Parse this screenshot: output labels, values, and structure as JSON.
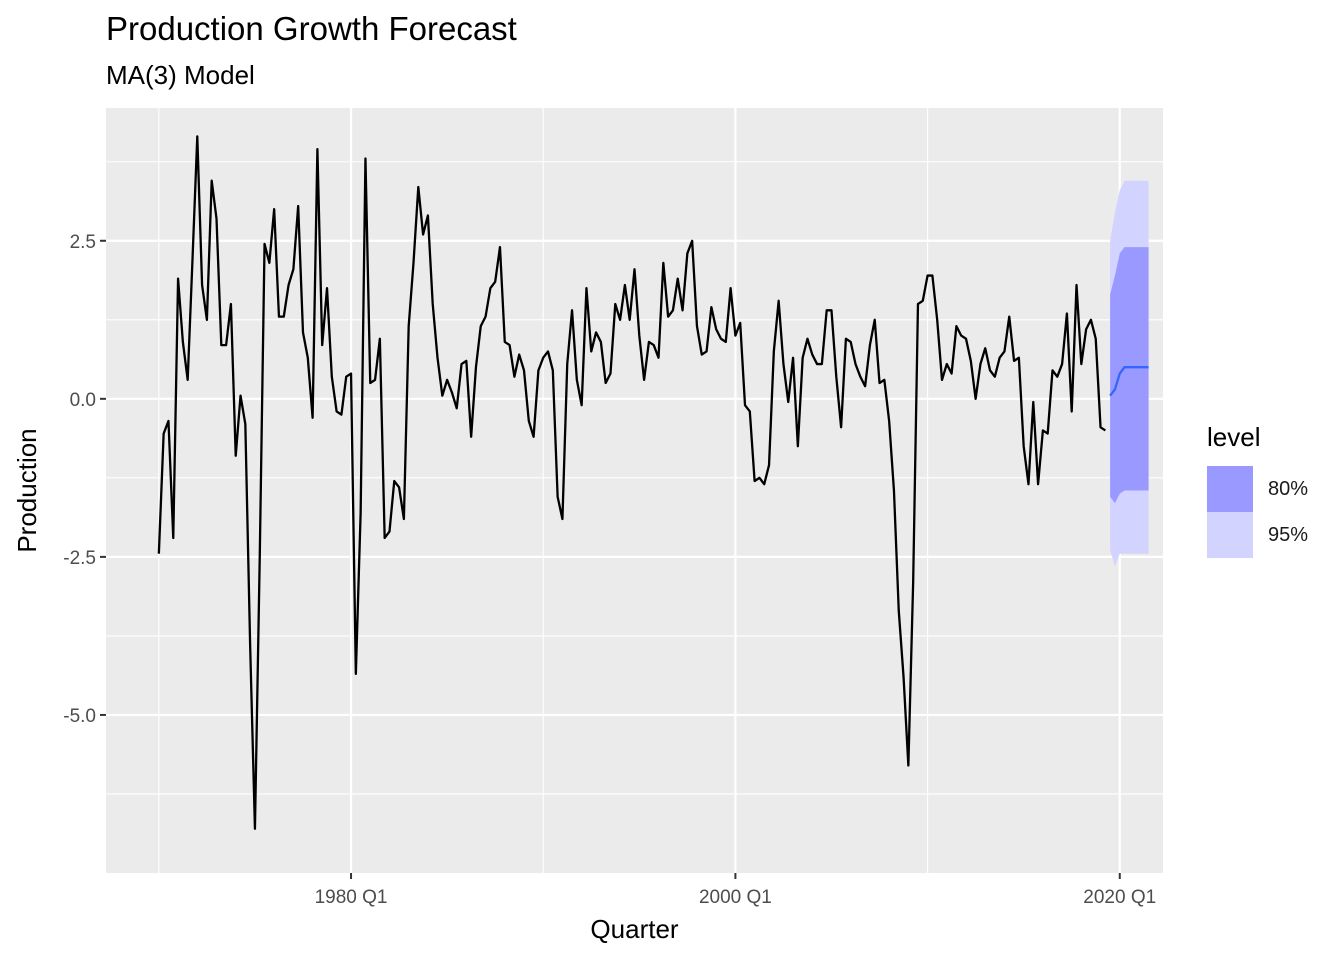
{
  "chart_data": {
    "type": "line",
    "title": "Production Growth Forecast",
    "subtitle": "MA(3) Model",
    "xlabel": "Quarter",
    "ylabel": "Production",
    "x_ticks": [
      "1980 Q1",
      "2000 Q1",
      "2020 Q1"
    ],
    "y_ticks": [
      "2.5",
      "0.0",
      "-2.5",
      "-5.0"
    ],
    "ylim": [
      -7.5,
      4.6
    ],
    "xlim": [
      "1967 Q2",
      "2022 Q2"
    ],
    "grid": true,
    "legend_position": "right",
    "legend_title": "level",
    "legend_entries": [
      "80%",
      "95%"
    ],
    "colors": {
      "panel_bg": "#EBEBEB",
      "grid": "#FFFFFF",
      "series": "#000000",
      "forecast_line": "#3366FF",
      "band_80": "#9999FF",
      "band_95": "#D3D3FF"
    },
    "series": [
      {
        "start": "1970 Q1",
        "frequency": "quarterly",
        "values": [
          -2.45,
          -0.55,
          -0.35,
          -2.2,
          1.9,
          0.9,
          0.3,
          2.2,
          4.15,
          1.8,
          1.25,
          3.45,
          2.85,
          0.85,
          0.85,
          1.5,
          -0.9,
          0.05,
          -0.4,
          -3.9,
          -6.8,
          -2.5,
          2.45,
          2.15,
          3.0,
          1.3,
          1.3,
          1.8,
          2.05,
          3.05,
          1.05,
          0.65,
          -0.3,
          3.95,
          0.85,
          1.75,
          0.35,
          -0.2,
          -0.25,
          0.35,
          0.4,
          -4.35,
          -1.8,
          3.8,
          0.25,
          0.3,
          0.95,
          -2.2,
          -2.1,
          -1.3,
          -1.4,
          -1.9,
          1.15,
          2.15,
          3.35,
          2.6,
          2.9,
          1.5,
          0.65,
          0.05,
          0.3,
          0.1,
          -0.15,
          0.55,
          0.6,
          -0.6,
          0.5,
          1.15,
          1.3,
          1.75,
          1.85,
          2.4,
          0.9,
          0.85,
          0.35,
          0.7,
          0.45,
          -0.35,
          -0.6,
          0.45,
          0.65,
          0.75,
          0.45,
          -1.55,
          -1.9,
          0.55,
          1.4,
          0.3,
          -0.1,
          1.75,
          0.75,
          1.05,
          0.9,
          0.25,
          0.4,
          1.5,
          1.25,
          1.8,
          1.25,
          2.05,
          1.0,
          0.3,
          0.9,
          0.85,
          0.65,
          2.15,
          1.3,
          1.4,
          1.9,
          1.4,
          2.3,
          2.5,
          1.15,
          0.7,
          0.75,
          1.45,
          1.1,
          0.95,
          0.9,
          1.75,
          1.0,
          1.2,
          -0.1,
          -0.2,
          -1.3,
          -1.25,
          -1.35,
          -1.05,
          0.75,
          1.55,
          0.55,
          -0.05,
          0.65,
          -0.75,
          0.65,
          0.95,
          0.7,
          0.55,
          0.55,
          1.4,
          1.4,
          0.35,
          -0.45,
          0.95,
          0.9,
          0.55,
          0.35,
          0.2,
          0.85,
          1.25,
          0.25,
          0.3,
          -0.35,
          -1.45,
          -3.35,
          -4.4,
          -5.8,
          -2.9,
          1.5,
          1.55,
          1.95,
          1.95,
          1.25,
          0.3,
          0.55,
          0.4,
          1.15,
          1.0,
          0.95,
          0.6,
          0.0,
          0.55,
          0.8,
          0.45,
          0.35,
          0.65,
          0.75,
          1.3,
          0.6,
          0.65,
          -0.75,
          -1.35,
          -0.05,
          -1.35,
          -0.5,
          -0.55,
          0.45,
          0.35,
          0.55,
          1.35,
          -0.2,
          1.8,
          0.55,
          1.1,
          1.25,
          0.95,
          -0.45,
          -0.5
        ]
      }
    ],
    "forecast": {
      "start": "2019 Q3",
      "frequency": "quarterly",
      "mean": [
        0.05,
        0.15,
        0.4,
        0.5,
        0.5,
        0.5,
        0.5,
        0.5,
        0.5
      ],
      "lower_80": [
        -1.55,
        -1.65,
        -1.5,
        -1.45,
        -1.45,
        -1.45,
        -1.45,
        -1.45,
        -1.45
      ],
      "upper_80": [
        1.65,
        1.95,
        2.3,
        2.4,
        2.4,
        2.4,
        2.4,
        2.4,
        2.4
      ],
      "lower_95": [
        -2.4,
        -2.65,
        -2.45,
        -2.45,
        -2.45,
        -2.45,
        -2.45,
        -2.45,
        -2.45
      ],
      "upper_95": [
        2.5,
        2.95,
        3.3,
        3.45,
        3.45,
        3.45,
        3.45,
        3.45,
        3.45
      ]
    }
  }
}
